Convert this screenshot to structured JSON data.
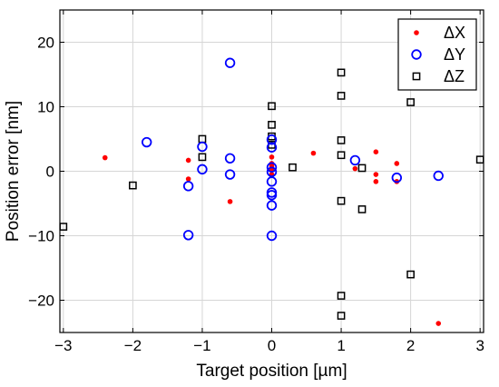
{
  "chart_data": {
    "type": "scatter",
    "xlabel": "Target position [µm]",
    "ylabel": "Position error [nm]",
    "xlim": [
      -3.05,
      3.05
    ],
    "ylim": [
      -25,
      25
    ],
    "xticks": [
      -3,
      -2,
      -1,
      0,
      1,
      2,
      3
    ],
    "yticks": [
      -20,
      -10,
      0,
      10,
      20
    ],
    "xtick_labels": [
      "−3",
      "−2",
      "−1",
      "0",
      "1",
      "2",
      "3"
    ],
    "ytick_labels": [
      "−20",
      "−10",
      "0",
      "10",
      "20"
    ],
    "grid": true,
    "legend_position": "top-right",
    "series": [
      {
        "name": "ΔX",
        "marker": "dot",
        "color": "#ff0000",
        "points": [
          [
            -2.4,
            2.1
          ],
          [
            -1.2,
            1.7
          ],
          [
            -1.2,
            -1.2
          ],
          [
            -0.6,
            -4.7
          ],
          [
            0.0,
            2.2
          ],
          [
            0.0,
            1.2
          ],
          [
            0.0,
            0.8
          ],
          [
            0.0,
            0.3
          ],
          [
            0.0,
            -0.5
          ],
          [
            0.6,
            2.8
          ],
          [
            1.2,
            0.4
          ],
          [
            1.5,
            3.0
          ],
          [
            1.5,
            -0.5
          ],
          [
            1.5,
            -1.6
          ],
          [
            1.8,
            1.2
          ],
          [
            1.8,
            -1.6
          ],
          [
            2.4,
            -23.6
          ]
        ]
      },
      {
        "name": "ΔY",
        "marker": "circle",
        "color": "#0000ff",
        "points": [
          [
            -1.8,
            4.5
          ],
          [
            -1.2,
            -2.3
          ],
          [
            -1.2,
            -9.9
          ],
          [
            -1.0,
            3.8
          ],
          [
            -1.0,
            0.3
          ],
          [
            -0.6,
            16.8
          ],
          [
            -0.6,
            2.0
          ],
          [
            -0.6,
            -0.5
          ],
          [
            0.0,
            4.9
          ],
          [
            0.0,
            3.7
          ],
          [
            0.0,
            0.6
          ],
          [
            0.0,
            -0.1
          ],
          [
            0.0,
            -1.6
          ],
          [
            0.0,
            -3.3
          ],
          [
            0.0,
            -3.7
          ],
          [
            0.0,
            -5.3
          ],
          [
            0.0,
            -10.0
          ],
          [
            1.2,
            1.7
          ],
          [
            1.8,
            -1.0
          ],
          [
            2.4,
            -0.7
          ]
        ]
      },
      {
        "name": "ΔZ",
        "marker": "square",
        "color": "#000000",
        "points": [
          [
            -3.0,
            -8.6
          ],
          [
            -2.0,
            -2.2
          ],
          [
            -1.0,
            5.0
          ],
          [
            -1.0,
            2.2
          ],
          [
            0.0,
            10.1
          ],
          [
            0.0,
            7.2
          ],
          [
            0.0,
            5.4
          ],
          [
            0.0,
            4.1
          ],
          [
            0.3,
            0.6
          ],
          [
            1.0,
            15.3
          ],
          [
            1.0,
            11.7
          ],
          [
            1.0,
            4.8
          ],
          [
            1.0,
            2.5
          ],
          [
            1.0,
            -4.6
          ],
          [
            1.0,
            -19.3
          ],
          [
            1.0,
            -22.4
          ],
          [
            1.3,
            0.5
          ],
          [
            1.3,
            -5.9
          ],
          [
            2.0,
            10.7
          ],
          [
            2.0,
            -16.0
          ],
          [
            3.0,
            1.8
          ]
        ]
      }
    ]
  }
}
